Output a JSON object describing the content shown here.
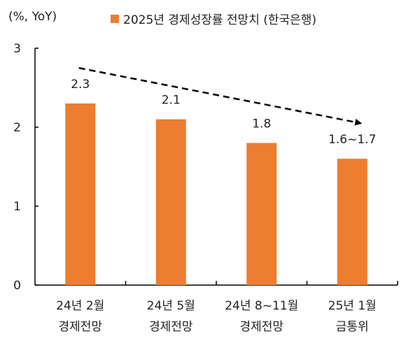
{
  "chart_data": {
    "type": "bar",
    "unit_label": "(%, YoY)",
    "legend": [
      {
        "name": "2025년 경제성장률 전망치 (한국은행)",
        "color": "#ED7D31"
      }
    ],
    "categories": [
      {
        "line1": "24년 2월",
        "line2": "경제전망"
      },
      {
        "line1": "24년 5월",
        "line2": "경제전망"
      },
      {
        "line1": "24년 8~11월",
        "line2": "경제전망"
      },
      {
        "line1": "25년 1월",
        "line2": "금통위"
      }
    ],
    "series": [
      {
        "name": "2025년 경제성장률 전망치 (한국은행)",
        "values": [
          2.3,
          2.1,
          1.8,
          1.6
        ]
      }
    ],
    "data_labels": [
      "2.3",
      "2.1",
      "1.8",
      "1.6~1.7"
    ],
    "ylim": [
      0,
      3
    ],
    "yticks": [
      0,
      1,
      2,
      3
    ],
    "grid": false,
    "legend_position": "top",
    "bar_color": "#ED7D31",
    "annotation": {
      "type": "dashed-arrow",
      "description": "downward trend",
      "from_category": 0,
      "to_category": 3,
      "from_value": 2.75,
      "to_value": 2.05
    }
  }
}
